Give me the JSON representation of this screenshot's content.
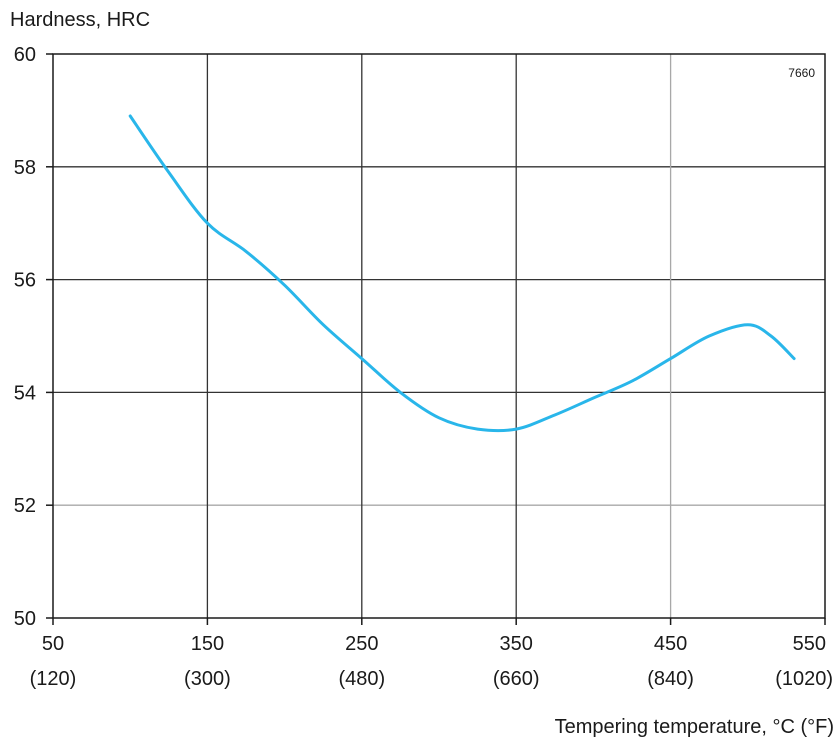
{
  "chart_data": {
    "type": "line",
    "ylabel": "Hardness, HRC",
    "xlabel": "Tempering temperature, °C (°F)",
    "annotation": "7660",
    "xlim": [
      50,
      550
    ],
    "ylim": [
      50,
      60
    ],
    "grid": true,
    "x_ticks": [
      {
        "c": 50,
        "f": "(120)"
      },
      {
        "c": 150,
        "f": "(300)"
      },
      {
        "c": 250,
        "f": "(480)"
      },
      {
        "c": 350,
        "f": "(660)"
      },
      {
        "c": 450,
        "f": "(840)"
      },
      {
        "c": 550,
        "f": "(1020)"
      }
    ],
    "y_ticks": [
      50,
      52,
      54,
      56,
      58,
      60
    ],
    "series": [
      {
        "color": "#29b6ea",
        "x": [
          100,
          125,
          150,
          175,
          200,
          225,
          250,
          275,
          300,
          325,
          350,
          375,
          400,
          425,
          450,
          475,
          500,
          515,
          530
        ],
        "y": [
          58.9,
          57.9,
          57.0,
          56.5,
          55.9,
          55.2,
          54.6,
          54.0,
          53.55,
          53.35,
          53.35,
          53.6,
          53.9,
          54.2,
          54.6,
          55.0,
          55.2,
          55.0,
          54.6
        ]
      }
    ]
  }
}
